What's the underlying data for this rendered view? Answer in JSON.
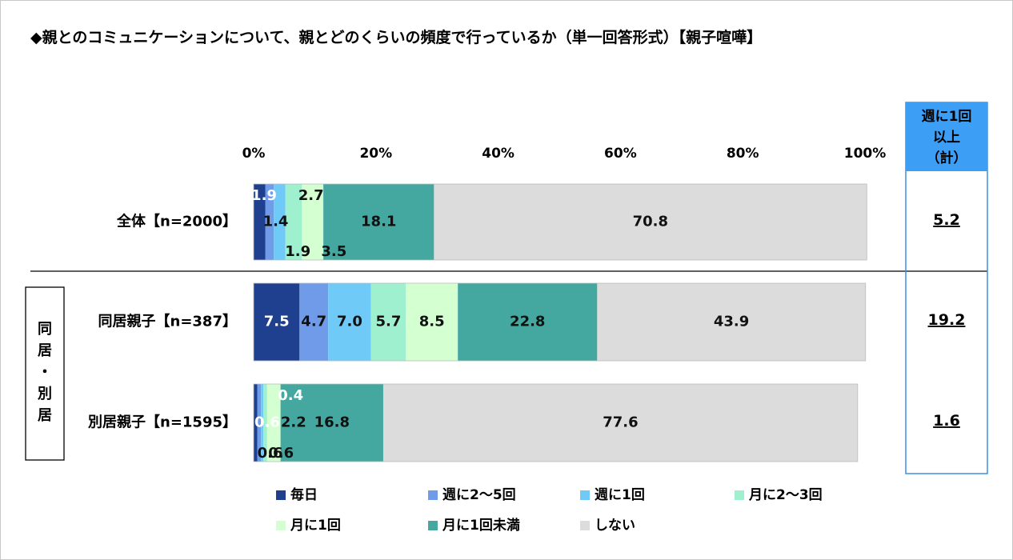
{
  "title": "◆親とのコミュニケーションについて、親とどのくらいの頻度で行っているか（単一回答形式）【親子喧嘩】",
  "sum_header": [
    "週に1回",
    "以上",
    "（計）"
  ],
  "group_label": [
    "同",
    "居",
    "・",
    "別",
    "居"
  ],
  "colors": {
    "series": [
      "#1f3f8f",
      "#6f9be8",
      "#6fcaf8",
      "#9ff0cf",
      "#d4ffd0",
      "#45a8a0",
      "#dcdcdc"
    ],
    "sum_border": "#3d8fe0",
    "sum_header_bg": "#3d9ef5"
  },
  "chart_data": {
    "type": "bar",
    "orientation": "horizontal",
    "stacked": true,
    "xlim": [
      0,
      100
    ],
    "ticks": [
      "0%",
      "20%",
      "40%",
      "60%",
      "80%",
      "100%"
    ],
    "categories": [
      "全体【n=2000】",
      "同居親子【n=387】",
      "別居親子【n=1595】"
    ],
    "series": [
      {
        "name": "毎日",
        "values": [
          1.9,
          7.5,
          0.6
        ]
      },
      {
        "name": "週に2～5回",
        "values": [
          1.4,
          4.7,
          0.6
        ]
      },
      {
        "name": "週に1回",
        "values": [
          1.9,
          7.0,
          0.4
        ]
      },
      {
        "name": "月に2～3回",
        "values": [
          2.7,
          5.7,
          0.6
        ]
      },
      {
        "name": "月に1回",
        "values": [
          3.5,
          8.5,
          2.2
        ]
      },
      {
        "name": "月に1回未満",
        "values": [
          18.1,
          22.8,
          16.8
        ]
      },
      {
        "name": "しない",
        "values": [
          70.8,
          43.9,
          77.6
        ]
      }
    ],
    "weekly_or_more": [
      5.2,
      19.2,
      1.6
    ],
    "legend_position": "bottom"
  }
}
